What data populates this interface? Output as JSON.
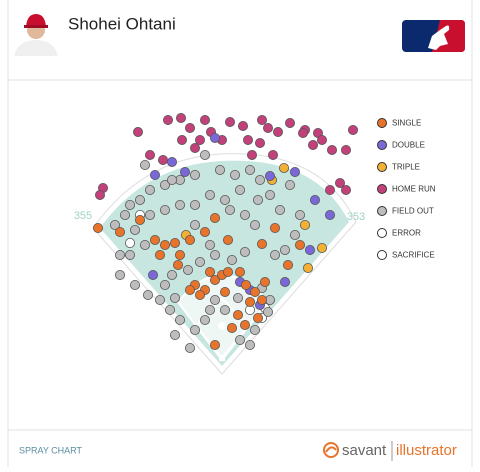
{
  "header": {
    "player": "Shohei Ohtani"
  },
  "field_labels": {
    "left": 355,
    "right": 353
  },
  "footer": {
    "title": "SPRAY CHART",
    "brand": [
      "savant",
      "illustrator"
    ]
  },
  "chart_data": {
    "type": "scatter",
    "legend": "right",
    "xlim": [
      -444,
      516
    ],
    "ylim": [
      -136,
      564
    ],
    "series": [
      {
        "name": "SINGLE",
        "color": "#e8742c",
        "x": [
          -248,
          -204,
          -164,
          -134,
          -114,
          -94,
          -84,
          -124,
          -88,
          -64,
          -34,
          -14,
          12,
          80,
          106,
          132,
          156,
          -54,
          -24,
          -14,
          0,
          12,
          36,
          48,
          66,
          80,
          86,
          -34,
          -64,
          -44,
          56,
          32,
          20,
          -14,
          46,
          72,
          6
        ],
        "y": [
          268,
          260,
          284,
          244,
          234,
          238,
          214,
          214,
          194,
          244,
          260,
          288,
          244,
          236,
          268,
          194,
          234,
          154,
          180,
          164,
          174,
          180,
          180,
          154,
          140,
          124,
          160,
          144,
          144,
          134,
          120,
          94,
          68,
          34,
          74,
          88,
          140
        ]
      },
      {
        "name": "DOUBLE",
        "color": "#7b68d8",
        "x": [
          -100,
          -74,
          -134,
          -14,
          96,
          146,
          186,
          216,
          176,
          -138,
          36,
          56,
          126,
          76
        ],
        "y": [
          400,
          380,
          374,
          448,
          372,
          380,
          324,
          294,
          224,
          174,
          160,
          144,
          160,
          114
        ]
      },
      {
        "name": "TRIPLE",
        "color": "#f2b134",
        "x": [
          124,
          100,
          166,
          200,
          172,
          -72
        ],
        "y": [
          388,
          364,
          274,
          228,
          188,
          254
        ]
      },
      {
        "name": "HOME RUN",
        "color": "#c2417a",
        "x": [
          -168,
          -108,
          -82,
          -64,
          -34,
          -22,
          0,
          16,
          42,
          52,
          80,
          92,
          112,
          136,
          166,
          192,
          200,
          220,
          262,
          248,
          -144,
          -118,
          -54,
          102,
          60,
          162,
          -238,
          -244,
          216,
          236,
          248,
          182,
          76,
          -44,
          -80
        ],
        "y": [
          460,
          484,
          488,
          468,
          484,
          460,
          444,
          480,
          472,
          444,
          484,
          468,
          460,
          478,
          464,
          458,
          444,
          424,
          464,
          424,
          414,
          404,
          428,
          414,
          414,
          458,
          348,
          334,
          344,
          358,
          344,
          434,
          438,
          444,
          444
        ]
      },
      {
        "name": "FIELD OUT",
        "color": "#bdbdbd",
        "x": [
          -184,
          -194,
          -214,
          -164,
          -144,
          -114,
          -84,
          -54,
          -34,
          -4,
          26,
          56,
          76,
          36,
          6,
          -24,
          -54,
          -84,
          -114,
          -144,
          -174,
          -154,
          -184,
          -204,
          -174,
          -148,
          -124,
          -94,
          -104,
          -84,
          -94,
          -64,
          -54,
          -34,
          -68,
          -100,
          -114,
          -44,
          -14,
          16,
          46,
          72,
          96,
          116,
          136,
          156,
          146,
          126,
          106,
          96,
          92,
          66,
          80,
          20,
          32,
          -14,
          -24,
          36,
          56,
          6,
          -24,
          -54,
          66,
          46,
          -204,
          -154,
          -100
        ],
        "y": [
          314,
          294,
          274,
          324,
          344,
          354,
          364,
          374,
          414,
          384,
          374,
          384,
          364,
          344,
          324,
          334,
          314,
          314,
          304,
          294,
          264,
          234,
          214,
          214,
          154,
          134,
          124,
          128,
          104,
          84,
          54,
          28,
          64,
          84,
          184,
          174,
          154,
          200,
          214,
          304,
          294,
          324,
          334,
          304,
          354,
          294,
          254,
          224,
          214,
          124,
          100,
          64,
          148,
          204,
          128,
          124,
          104,
          44,
          34,
          104,
          234,
          274,
          274,
          220,
          174,
          394,
          364
        ]
      },
      {
        "name": "ERROR",
        "color": "#ffffff",
        "x": [
          -184,
          56,
          86
        ],
        "y": [
          238,
          104,
          108
        ]
      },
      {
        "name": "SACRIFICE",
        "color": "#ffffff",
        "x": [
          -164,
          80
        ],
        "y": [
          294,
          88
        ]
      }
    ]
  }
}
